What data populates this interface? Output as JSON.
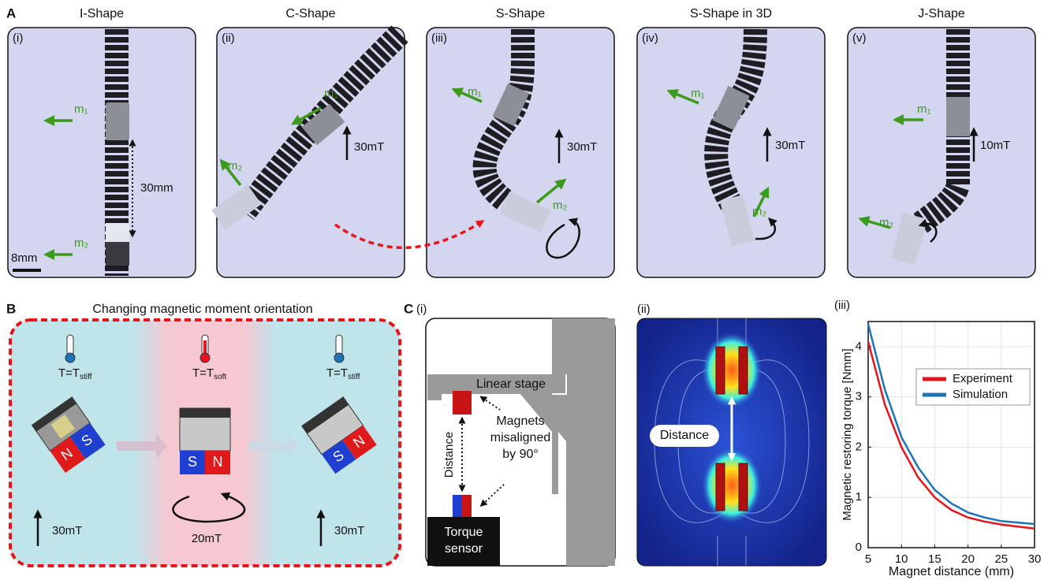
{
  "panel_a": {
    "label": "A",
    "panels": [
      {
        "title": "I-Shape",
        "index": "(i)",
        "m1": "m₁",
        "m2": "m₂",
        "distance": "30mm",
        "scale": "8mm"
      },
      {
        "title": "C-Shape",
        "index": "(ii)",
        "m1": "m₁",
        "m2": "m₂",
        "field": "30mT"
      },
      {
        "title": "S-Shape",
        "index": "(iii)",
        "m1": "m₁",
        "m2": "m₂",
        "field": "30mT"
      },
      {
        "title": "S-Shape in 3D",
        "index": "(iv)",
        "m1": "m₁",
        "m2": "m₂",
        "field": "30mT"
      },
      {
        "title": "J-Shape",
        "index": "(v)",
        "m1": "m₁",
        "m2": "m₂",
        "field": "10mT"
      }
    ]
  },
  "panel_b": {
    "label": "B",
    "title": "Changing magnetic moment orientation",
    "states": [
      {
        "temp": "T=T",
        "temp_sub": "stiff",
        "north": "N",
        "south": "S",
        "field": "30mT"
      },
      {
        "temp": "T=T",
        "temp_sub": "soft",
        "north": "N",
        "south": "S",
        "field": "20mT"
      },
      {
        "temp": "T=T",
        "temp_sub": "stiff",
        "north": "N",
        "south": "S",
        "field": "30mT"
      }
    ]
  },
  "panel_c": {
    "label": "C",
    "setup": {
      "index": "(i)",
      "stage": "Linear stage",
      "distance": "Distance",
      "magnets": [
        "Magnets",
        "misaligned",
        "by 90°"
      ],
      "sensor": [
        "Torque",
        "sensor"
      ]
    },
    "simulation": {
      "index": "(ii)",
      "distance": "Distance"
    },
    "plot_index": "(iii)"
  },
  "chart_data": {
    "type": "line",
    "xlabel": "Magnet distance (mm)",
    "ylabel": "Magnetic restoring torque [Nmm]",
    "x": [
      5,
      7.5,
      10,
      12.5,
      15,
      17.5,
      20,
      22.5,
      25,
      27.5,
      30
    ],
    "series": [
      {
        "name": "Experiment",
        "color": "#e8141c",
        "values": [
          4.1,
          2.85,
          2.0,
          1.4,
          1.0,
          0.75,
          0.6,
          0.52,
          0.46,
          0.42,
          0.38
        ]
      },
      {
        "name": "Simulation",
        "color": "#1f74b8",
        "values": [
          4.45,
          3.15,
          2.2,
          1.6,
          1.15,
          0.88,
          0.7,
          0.6,
          0.53,
          0.5,
          0.47
        ]
      }
    ],
    "xlim": [
      5,
      30
    ],
    "xticks": [
      5,
      10,
      15,
      20,
      25,
      30
    ],
    "ylim": [
      0,
      4.5
    ],
    "yticks": [
      0,
      1,
      2,
      3,
      4
    ],
    "grid": true,
    "legend": "center right"
  }
}
